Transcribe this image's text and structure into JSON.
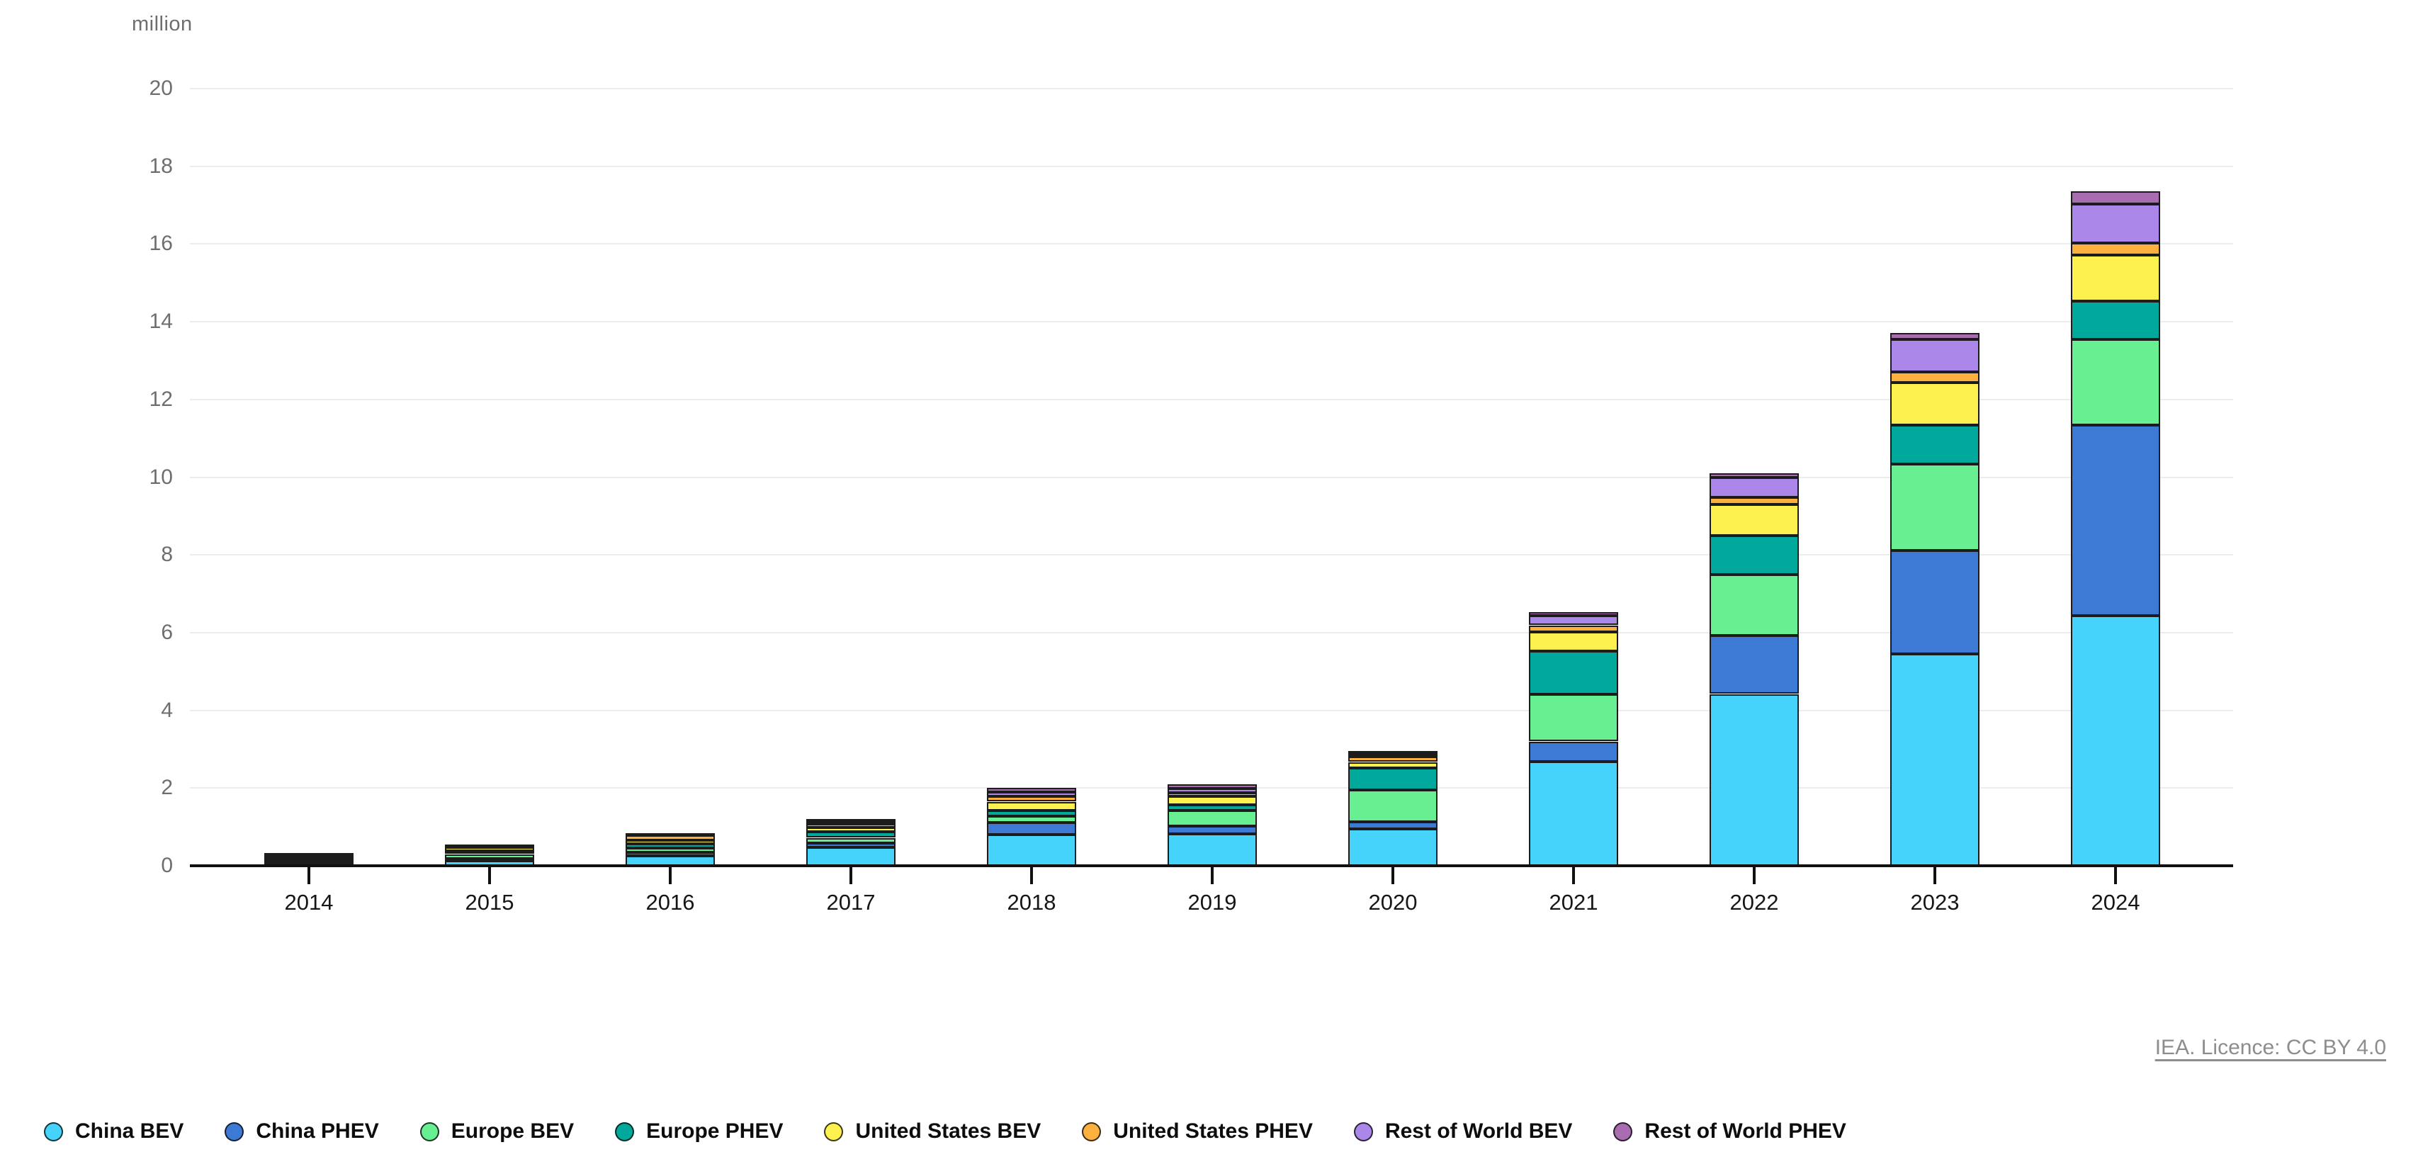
{
  "footer": {
    "licence_link": "IEA. Licence: CC BY 4.0"
  },
  "legend": {
    "items": [
      {
        "label": "China BEV",
        "color": "#45d3fc"
      },
      {
        "label": "China PHEV",
        "color": "#3d7ad6"
      },
      {
        "label": "Europe BEV",
        "color": "#67ef92"
      },
      {
        "label": "Europe PHEV",
        "color": "#00a99b"
      },
      {
        "label": "United States BEV",
        "color": "#fdf150"
      },
      {
        "label": "United States PHEV",
        "color": "#fbb040"
      },
      {
        "label": "Rest of World BEV",
        "color": "#ab87e9"
      },
      {
        "label": "Rest of World PHEV",
        "color": "#a96cb1"
      }
    ]
  },
  "chart_data": {
    "type": "bar",
    "stacked": true,
    "title": "",
    "ylabel": "million",
    "xlabel": "",
    "ylim": [
      0,
      20
    ],
    "ytick_step": 2,
    "grid": true,
    "legend_position": "bottom",
    "categories": [
      "2014",
      "2015",
      "2016",
      "2017",
      "2018",
      "2019",
      "2020",
      "2021",
      "2022",
      "2023",
      "2024"
    ],
    "series": [
      {
        "name": "China BEV",
        "color": "#45d3fc",
        "values": [
          0.03,
          0.12,
          0.25,
          0.48,
          0.8,
          0.82,
          0.95,
          2.68,
          4.42,
          5.45,
          6.43
        ]
      },
      {
        "name": "China PHEV",
        "color": "#3d7ad6",
        "values": [
          0.01,
          0.06,
          0.1,
          0.1,
          0.32,
          0.2,
          0.18,
          0.52,
          1.51,
          2.66,
          4.91
        ]
      },
      {
        "name": "Europe BEV",
        "color": "#67ef92",
        "values": [
          0.07,
          0.12,
          0.11,
          0.14,
          0.16,
          0.4,
          0.82,
          1.22,
          1.57,
          2.23,
          2.2
        ]
      },
      {
        "name": "Europe PHEV",
        "color": "#00a99b",
        "values": [
          0.03,
          0.09,
          0.1,
          0.16,
          0.15,
          0.15,
          0.56,
          1.11,
          1.0,
          1.0,
          0.99
        ]
      },
      {
        "name": "United States BEV",
        "color": "#fdf150",
        "values": [
          0.08,
          0.08,
          0.1,
          0.1,
          0.22,
          0.21,
          0.16,
          0.48,
          0.8,
          1.09,
          1.18
        ]
      },
      {
        "name": "United States PHEV",
        "color": "#fbb040",
        "values": [
          0.08,
          0.04,
          0.13,
          0.09,
          0.13,
          0.09,
          0.13,
          0.18,
          0.18,
          0.28,
          0.32
        ]
      },
      {
        "name": "Rest of World BEV",
        "color": "#ab87e9",
        "values": [
          0.02,
          0.02,
          0.03,
          0.07,
          0.11,
          0.11,
          0.08,
          0.24,
          0.52,
          0.83,
          1.0
        ]
      },
      {
        "name": "Rest of World PHEV",
        "color": "#a96cb1",
        "values": [
          0.01,
          0.01,
          0.02,
          0.06,
          0.11,
          0.12,
          0.08,
          0.09,
          0.1,
          0.18,
          0.32
        ]
      }
    ]
  }
}
